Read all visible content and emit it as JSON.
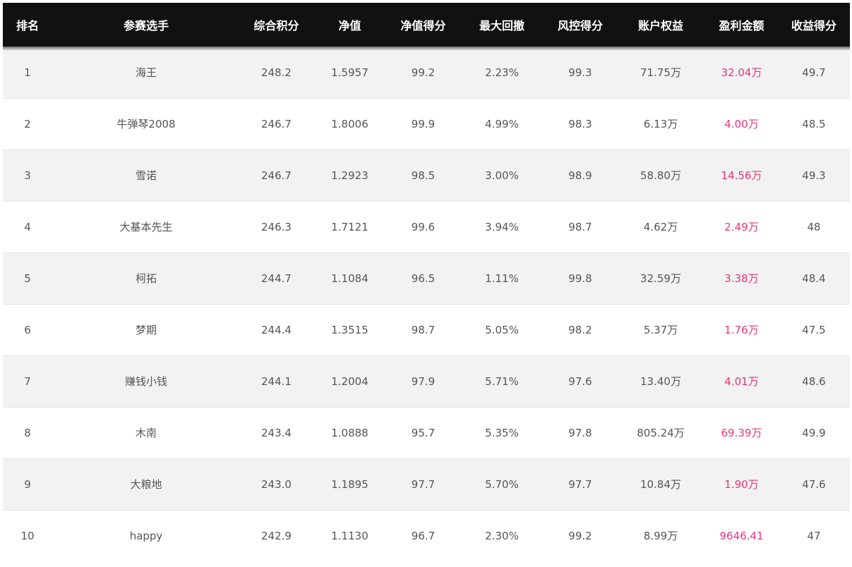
{
  "columns": [
    "排名",
    "参赛选手",
    "综合积分",
    "净值",
    "净值得分",
    "最大回撤",
    "风控得分",
    "账户权益",
    "盈利金额",
    "收益得分"
  ],
  "rows": [
    {
      "rank": "1",
      "name": "海王",
      "score": "248.2",
      "nav": "1.5957",
      "nav_score": "99.2",
      "max_dd": "2.23%",
      "risk_score": "99.3",
      "equity": "71.75万",
      "profit": "32.04万",
      "return_score": "49.7"
    },
    {
      "rank": "2",
      "name": "牛弹琴2008",
      "score": "246.7",
      "nav": "1.8006",
      "nav_score": "99.9",
      "max_dd": "4.99%",
      "risk_score": "98.3",
      "equity": "6.13万",
      "profit": "4.00万",
      "return_score": "48.5"
    },
    {
      "rank": "3",
      "name": "雪诺",
      "score": "246.7",
      "nav": "1.2923",
      "nav_score": "98.5",
      "max_dd": "3.00%",
      "risk_score": "98.9",
      "equity": "58.80万",
      "profit": "14.56万",
      "return_score": "49.3"
    },
    {
      "rank": "4",
      "name": "大基本先生",
      "score": "246.3",
      "nav": "1.7121",
      "nav_score": "99.6",
      "max_dd": "3.94%",
      "risk_score": "98.7",
      "equity": "4.62万",
      "profit": "2.49万",
      "return_score": "48"
    },
    {
      "rank": "5",
      "name": "柯拓",
      "score": "244.7",
      "nav": "1.1084",
      "nav_score": "96.5",
      "max_dd": "1.11%",
      "risk_score": "99.8",
      "equity": "32.59万",
      "profit": "3.38万",
      "return_score": "48.4"
    },
    {
      "rank": "6",
      "name": "梦期",
      "score": "244.4",
      "nav": "1.3515",
      "nav_score": "98.7",
      "max_dd": "5.05%",
      "risk_score": "98.2",
      "equity": "5.37万",
      "profit": "1.76万",
      "return_score": "47.5"
    },
    {
      "rank": "7",
      "name": "赚钱小钱",
      "score": "244.1",
      "nav": "1.2004",
      "nav_score": "97.9",
      "max_dd": "5.71%",
      "risk_score": "97.6",
      "equity": "13.40万",
      "profit": "4.01万",
      "return_score": "48.6"
    },
    {
      "rank": "8",
      "name": "木南",
      "score": "243.4",
      "nav": "1.0888",
      "nav_score": "95.7",
      "max_dd": "5.35%",
      "risk_score": "97.8",
      "equity": "805.24万",
      "profit": "69.39万",
      "return_score": "49.9"
    },
    {
      "rank": "9",
      "name": "大粮地",
      "score": "243.0",
      "nav": "1.1895",
      "nav_score": "97.7",
      "max_dd": "5.70%",
      "risk_score": "97.7",
      "equity": "10.84万",
      "profit": "1.90万",
      "return_score": "47.6"
    },
    {
      "rank": "10",
      "name": "happy",
      "score": "242.9",
      "nav": "1.1130",
      "nav_score": "96.7",
      "max_dd": "2.30%",
      "risk_score": "99.2",
      "equity": "8.99万",
      "profit": "9646.41",
      "return_score": "47"
    }
  ],
  "colors": {
    "header_bg": "#111111",
    "header_text": "#ffffff",
    "row_alt_bg": "#f2f2f2",
    "body_text": "#555555",
    "profit_text": "#e8357a"
  }
}
